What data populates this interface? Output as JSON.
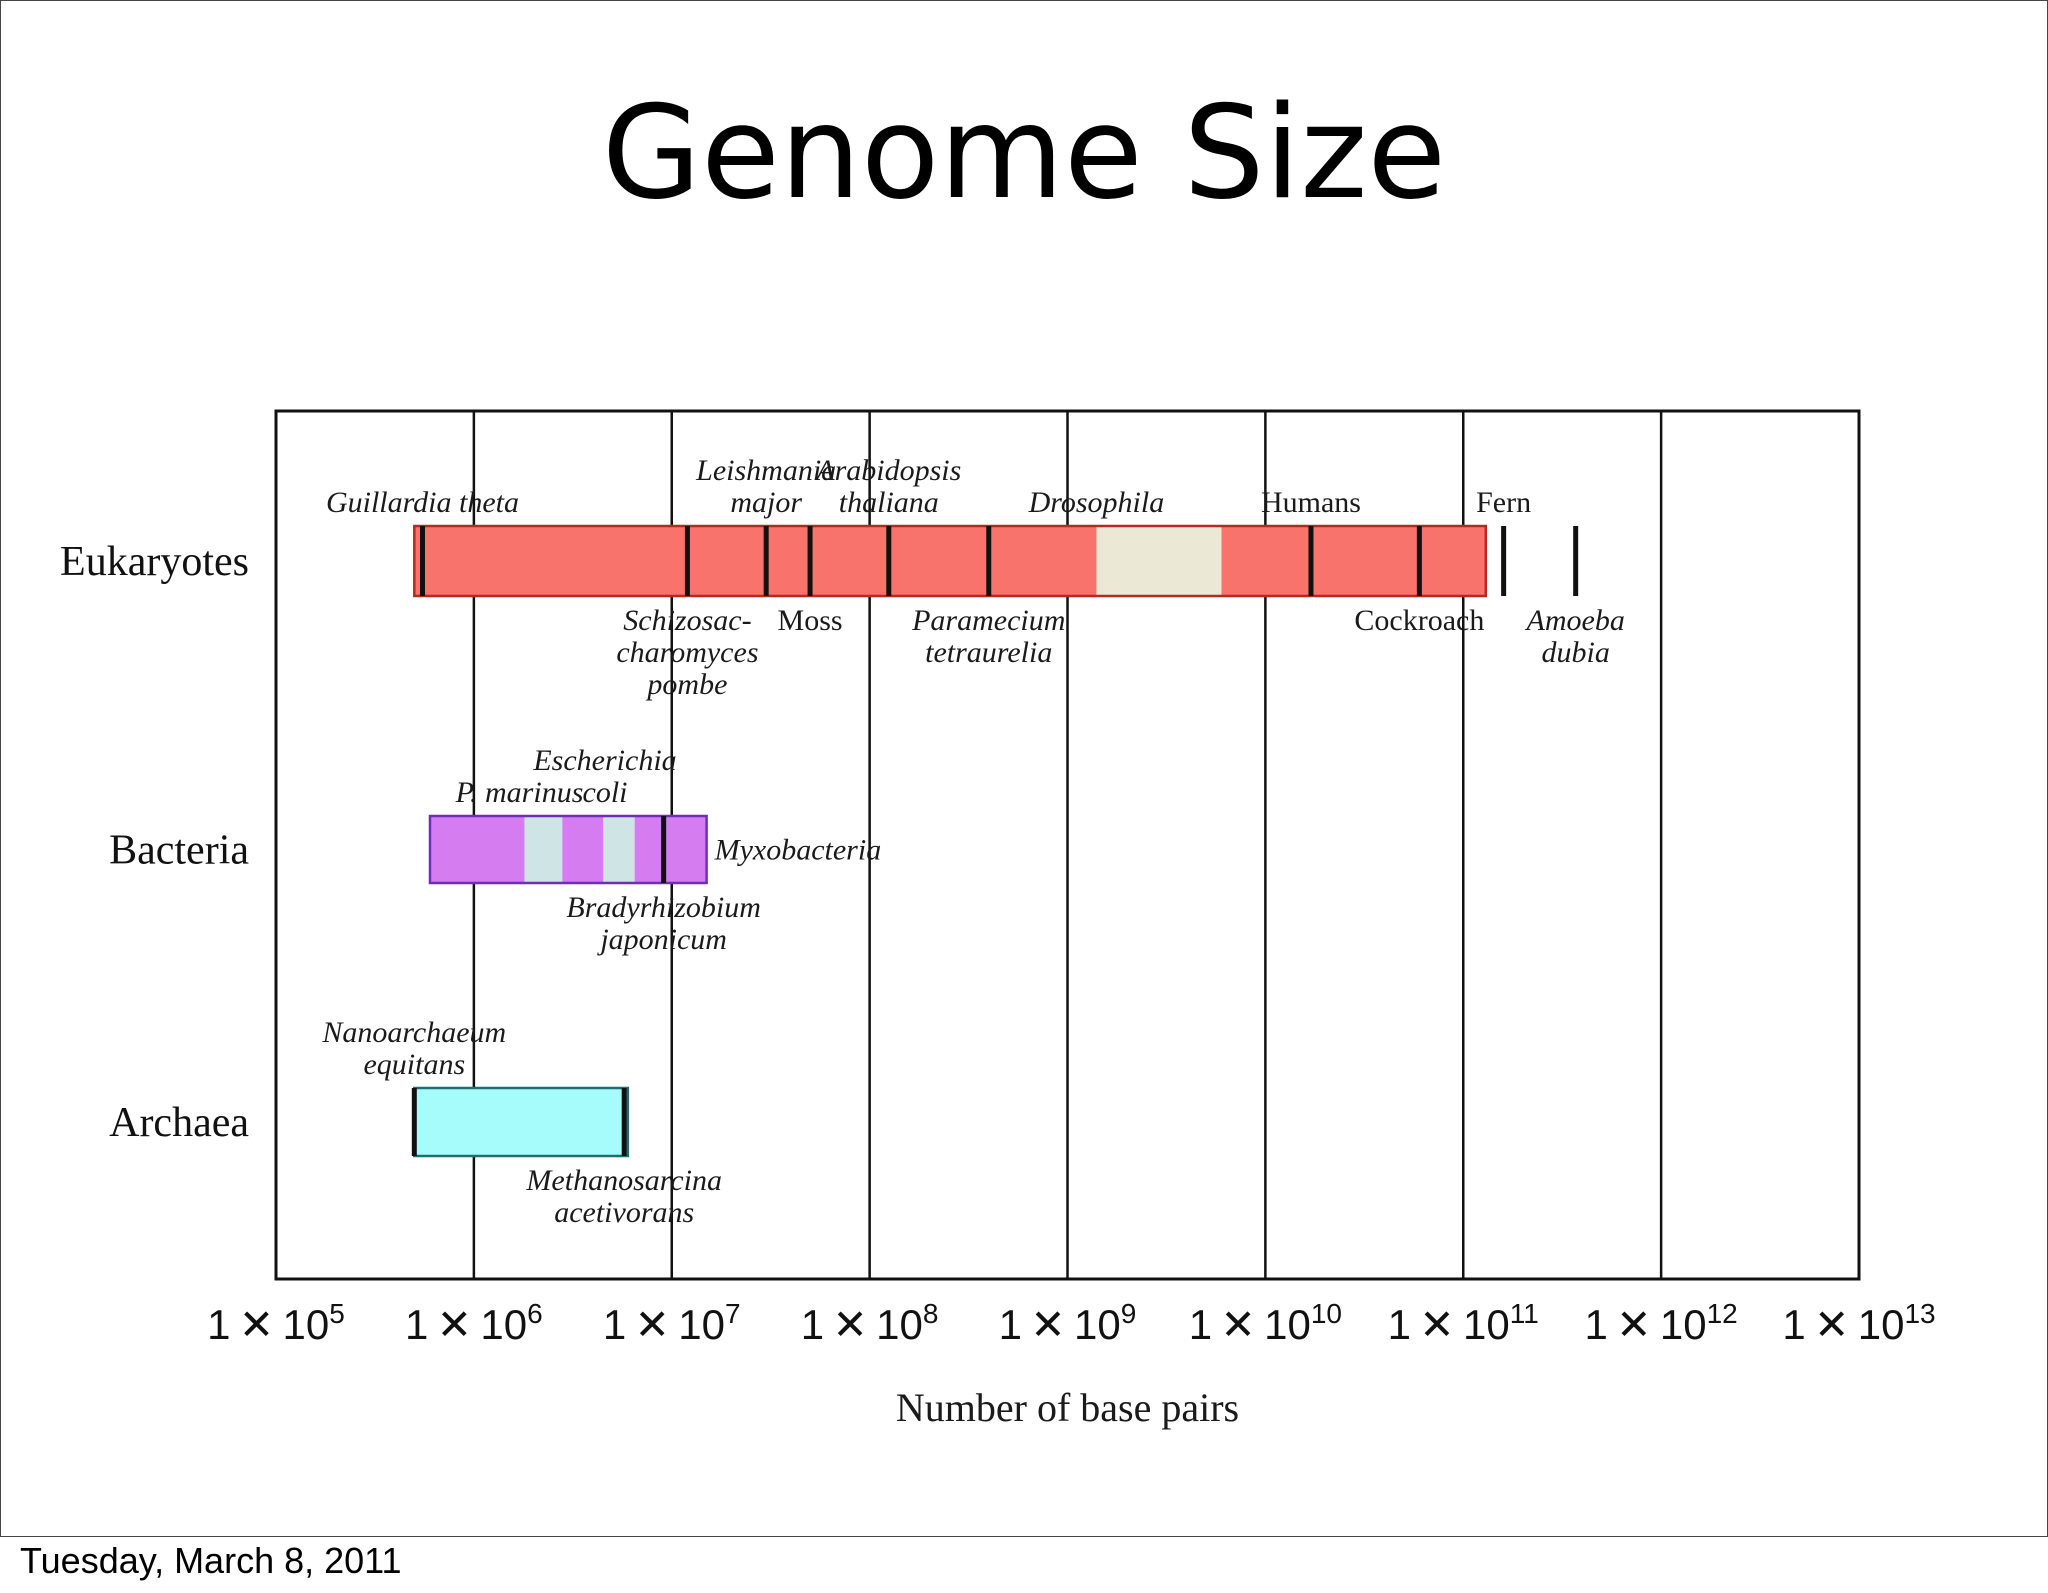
{
  "title": "Genome Size",
  "footer": {
    "date": "Tuesday, March 8, 2011"
  },
  "colors": {
    "eukaryotes": "#f8736b",
    "eukaryotes_light": "#ece8d6",
    "bacteria": "#d47cf0",
    "bacteria_light": "#cfe4e4",
    "archaea": "#a6fbfb"
  },
  "chart_data": {
    "type": "bar",
    "scale": "log10",
    "xlabel": "Number of base pairs",
    "xlim": [
      100000,
      10000000000000
    ],
    "ticks": [
      {
        "value": 100000,
        "base": "1 ✕ 10",
        "exp": "5"
      },
      {
        "value": 1000000,
        "base": "1 ✕ 10",
        "exp": "6"
      },
      {
        "value": 10000000,
        "base": "1 ✕ 10",
        "exp": "7"
      },
      {
        "value": 100000000,
        "base": "1 ✕ 10",
        "exp": "8"
      },
      {
        "value": 1000000000,
        "base": "1 ✕ 10",
        "exp": "9"
      },
      {
        "value": 10000000000,
        "base": "1 ✕ 10",
        "exp": "10"
      },
      {
        "value": 100000000000,
        "base": "1 ✕ 10",
        "exp": "11"
      },
      {
        "value": 1000000000000,
        "base": "1 ✕ 10",
        "exp": "12"
      },
      {
        "value": 10000000000000,
        "base": "1 ✕ 10",
        "exp": "13"
      }
    ],
    "groups": [
      {
        "name": "Eukaryotes",
        "range": [
          500000,
          130000000000
        ],
        "color_key": "eukaryotes",
        "shaded": [
          {
            "range": [
              1400000000,
              6000000000
            ],
            "color_key": "eukaryotes_light"
          }
        ],
        "organisms": [
          {
            "lines": [
              "Guillardia theta"
            ],
            "value": 550000,
            "side": "above",
            "italic": true
          },
          {
            "lines": [
              "Schizosac-",
              "charomyces",
              "pombe"
            ],
            "value": 12000000,
            "side": "below",
            "italic": true
          },
          {
            "lines": [
              "Leishmania",
              "major"
            ],
            "value": 30000000,
            "side": "above",
            "italic": true
          },
          {
            "lines": [
              "Moss"
            ],
            "value": 50000000,
            "side": "below",
            "italic": false
          },
          {
            "lines": [
              "Arabidopsis",
              "thaliana"
            ],
            "value": 125000000,
            "side": "above",
            "italic": true
          },
          {
            "lines": [
              "Paramecium",
              "tetraurelia"
            ],
            "value": 400000000,
            "side": "below",
            "italic": true
          },
          {
            "lines": [
              "Drosophila"
            ],
            "value": 1400000000,
            "side": "above",
            "italic": true,
            "no_mark": true
          },
          {
            "lines": [
              "Humans"
            ],
            "value": 17000000000,
            "side": "above",
            "italic": false
          },
          {
            "lines": [
              "Cockroach"
            ],
            "value": 60000000000,
            "side": "below",
            "italic": false
          },
          {
            "lines": [
              "Fern"
            ],
            "value": 160000000000,
            "side": "above",
            "italic": false
          },
          {
            "lines": [
              "Amoeba",
              "dubia"
            ],
            "value": 370000000000,
            "side": "below",
            "italic": true
          }
        ]
      },
      {
        "name": "Bacteria",
        "range": [
          600000,
          15000000
        ],
        "color_key": "bacteria",
        "shaded": [
          {
            "range": [
              1800000,
              2800000
            ],
            "color_key": "bacteria_light"
          },
          {
            "range": [
              4500000,
              6500000
            ],
            "color_key": "bacteria_light"
          }
        ],
        "organisms": [
          {
            "lines": [
              "P. marinus"
            ],
            "value": 1700000,
            "side": "above",
            "italic": true,
            "no_mark": true
          },
          {
            "lines": [
              "Escherichia",
              "coli"
            ],
            "value": 4600000,
            "side": "above",
            "italic": true,
            "no_mark": true
          },
          {
            "lines": [
              "Myxobacteria"
            ],
            "value": 15000000,
            "side": "right",
            "italic": true,
            "no_mark": true
          },
          {
            "lines": [
              "Bradyrhizobium",
              "japonicum"
            ],
            "value": 9100000,
            "side": "below",
            "italic": true
          }
        ]
      },
      {
        "name": "Archaea",
        "range": [
          500000,
          6000000
        ],
        "color_key": "archaea",
        "shaded": [],
        "organisms": [
          {
            "lines": [
              "Nanoarchaeum",
              "equitans"
            ],
            "value": 500000,
            "side": "above",
            "italic": true
          },
          {
            "lines": [
              "Methanosarcina",
              "acetivorans"
            ],
            "value": 5750000,
            "side": "below",
            "italic": true
          }
        ]
      }
    ]
  }
}
